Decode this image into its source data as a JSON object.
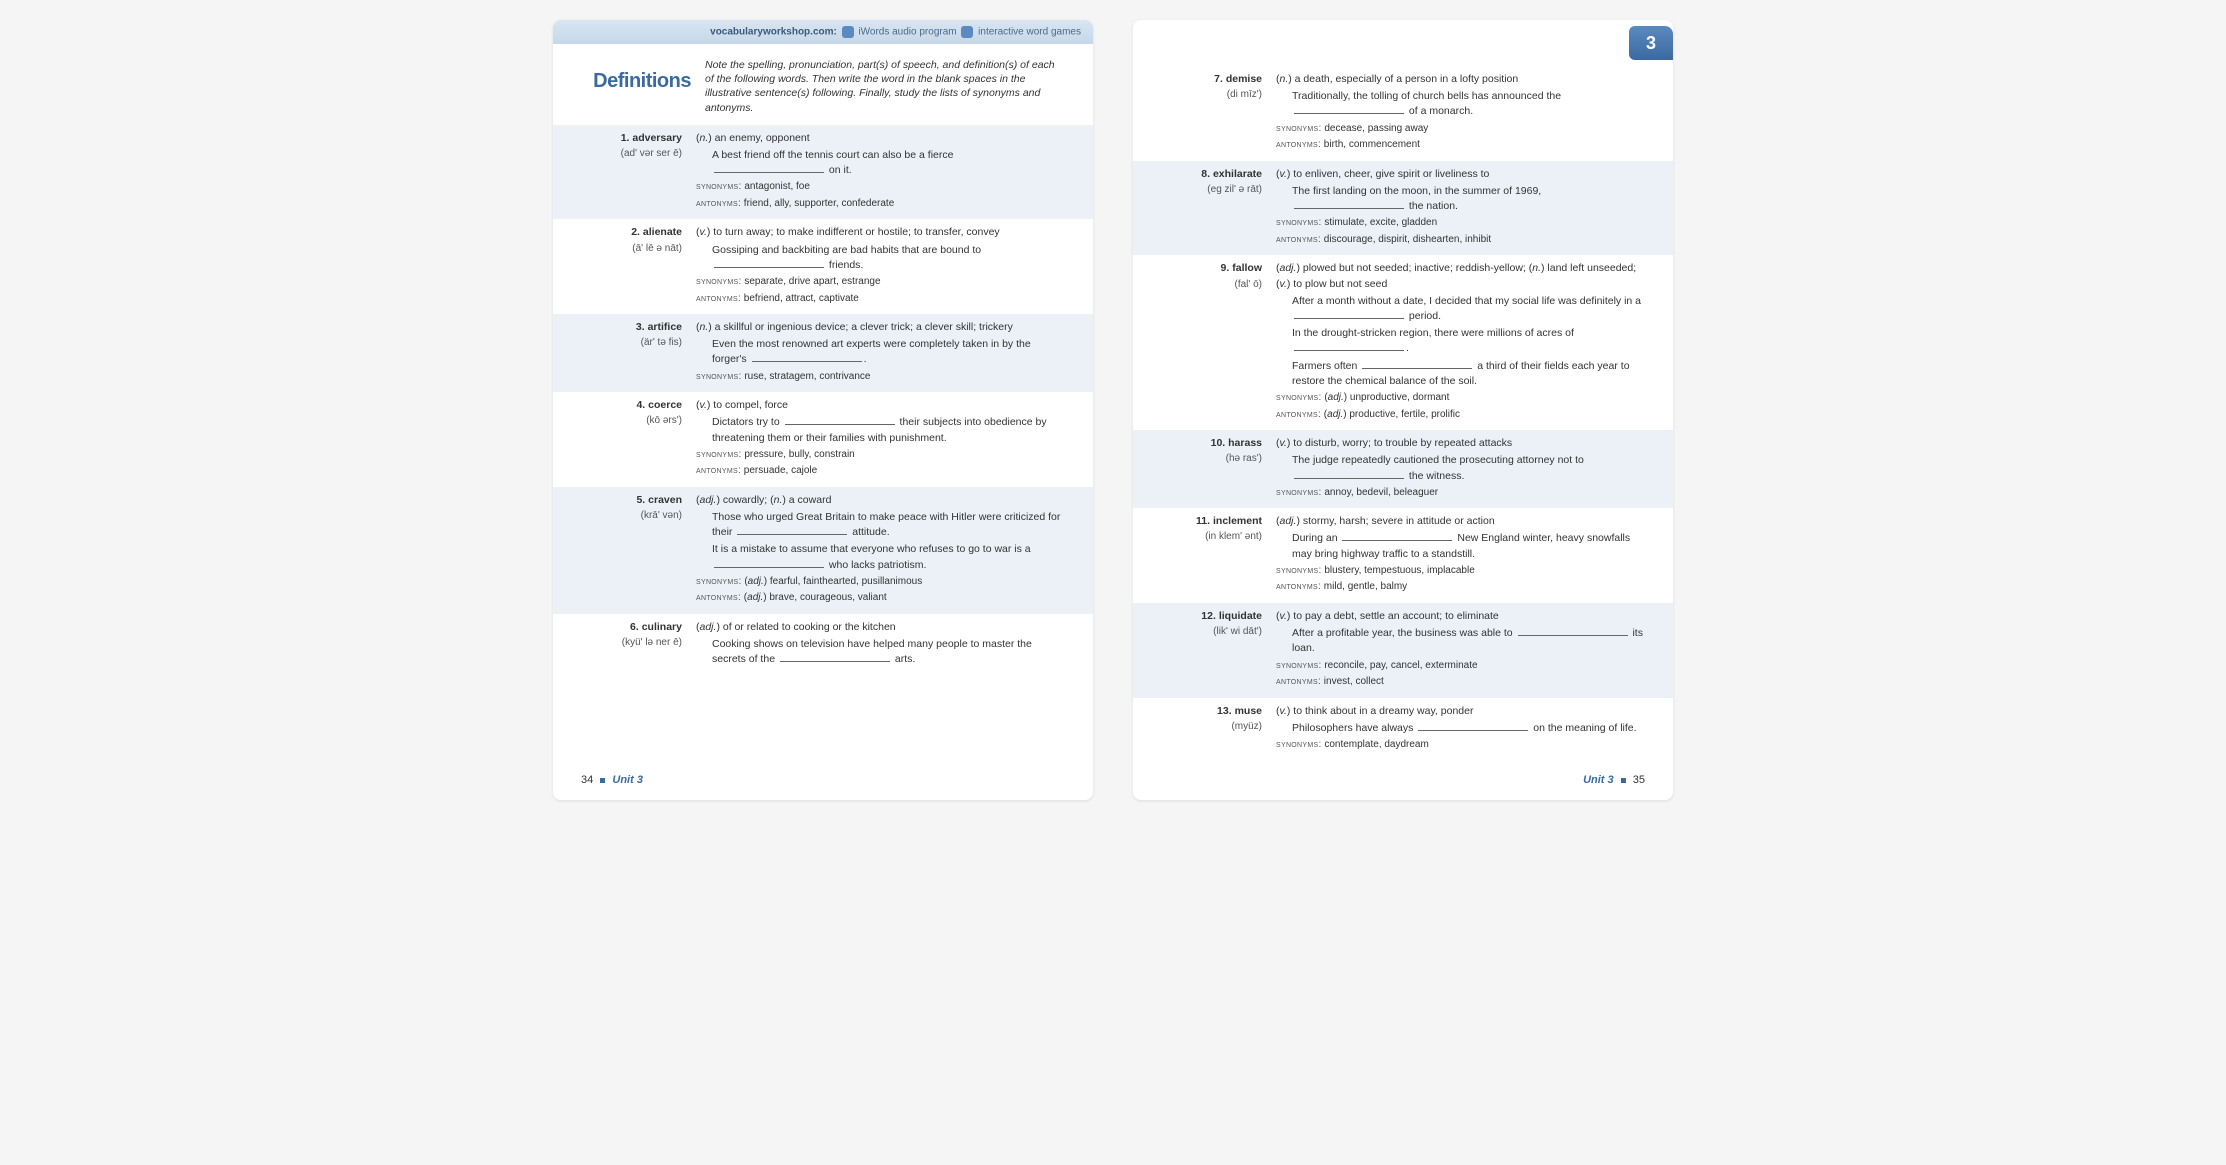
{
  "banner": {
    "site": "vocabularyworkshop.com:",
    "words_label": "iWords",
    "audio_label": "audio program",
    "games_label": "interactive word games"
  },
  "unit_tab": "3",
  "definitions_heading": "Definitions",
  "intro": "Note the spelling, pronunciation, part(s) of speech, and definition(s) of each of the following words. Then write the word in the blank spaces in the illustrative sentence(s) following. Finally, study the lists of synonyms and antonyms.",
  "footer_left": {
    "page": "34",
    "unit": "Unit 3"
  },
  "footer_right": {
    "unit": "Unit 3",
    "page": "35"
  },
  "entries_left": [
    {
      "num": "1.",
      "word": "adversary",
      "pron": "(ad' vər ser ē)",
      "def": "(<em>n.</em>) an enemy, opponent",
      "sentences": [
        "A best friend off the tennis court can also be a fierce <span class='blank'></span> on it."
      ],
      "syn": "antagonist, foe",
      "ant": "friend, ally, supporter, confederate"
    },
    {
      "num": "2.",
      "word": "alienate",
      "pron": "(ā' lē ə nāt)",
      "def": "(<em>v.</em>) to turn away; to make indifferent or hostile; to transfer, convey",
      "sentences": [
        "Gossiping and backbiting are bad habits that are bound to <span class='blank'></span> friends."
      ],
      "syn": "separate, drive apart, estrange",
      "ant": "befriend, attract, captivate"
    },
    {
      "num": "3.",
      "word": "artifice",
      "pron": "(är' tə fis)",
      "def": "(<em>n.</em>) a skillful or ingenious device; a clever trick; a clever skill; trickery",
      "sentences": [
        "Even the most renowned art experts were completely taken in by the forger's <span class='blank'></span>."
      ],
      "syn": "ruse, stratagem, contrivance",
      "ant": ""
    },
    {
      "num": "4.",
      "word": "coerce",
      "pron": "(kō ərs')",
      "def": "(<em>v.</em>) to compel, force",
      "sentences": [
        "Dictators try to <span class='blank'></span> their subjects into obedience by threatening them or their families with punishment."
      ],
      "syn": "pressure, bully, constrain",
      "ant": "persuade, cajole"
    },
    {
      "num": "5.",
      "word": "craven",
      "pron": "(krā' vən)",
      "def": "(<em>adj.</em>) cowardly; (<em>n.</em>) a coward",
      "sentences": [
        "Those who urged Great Britain to make peace with Hitler were criticized for their <span class='blank'></span> attitude.",
        "It is a mistake to assume that everyone who refuses to go to war is a <span class='blank'></span> who lacks patriotism."
      ],
      "syn": "(<em>adj.</em>) fearful, fainthearted, pusillanimous",
      "ant": "(<em>adj.</em>) brave, courageous, valiant"
    },
    {
      "num": "6.",
      "word": "culinary",
      "pron": "(kyü' lə ner ē)",
      "def": "(<em>adj.</em>) of or related to cooking or the kitchen",
      "sentences": [
        "Cooking shows on television have helped many people to master the secrets of the <span class='blank'></span> arts."
      ],
      "syn": "",
      "ant": ""
    }
  ],
  "entries_right": [
    {
      "num": "7.",
      "word": "demise",
      "pron": "(di mīz')",
      "def": "(<em>n.</em>) a death, especially of a person in a lofty position",
      "sentences": [
        "Traditionally, the tolling of church bells has announced the <span class='blank'></span> of a monarch."
      ],
      "syn": "decease, passing away",
      "ant": "birth, commencement"
    },
    {
      "num": "8.",
      "word": "exhilarate",
      "pron": "(eg zil' ə rāt)",
      "def": "(<em>v.</em>) to enliven, cheer, give spirit or liveliness to",
      "sentences": [
        "The first landing on the moon, in the summer of 1969, <span class='blank'></span> the nation."
      ],
      "syn": "stimulate, excite, gladden",
      "ant": "discourage, dispirit, dishearten, inhibit"
    },
    {
      "num": "9.",
      "word": "fallow",
      "pron": "(fal' ō)",
      "def": "(<em>adj.</em>) plowed but not seeded; inactive; reddish-yellow; (<em>n.</em>) land left unseeded; (<em>v.</em>) to plow but not seed",
      "sentences": [
        "After a month without a date, I decided that my social life was definitely in a <span class='blank'></span> period.",
        "In the drought-stricken region, there were millions of acres of <span class='blank'></span>.",
        "Farmers often <span class='blank'></span> a third of their fields each year to restore the chemical balance of the soil."
      ],
      "syn": "(<em>adj.</em>) unproductive, dormant",
      "ant": "(<em>adj.</em>) productive, fertile, prolific"
    },
    {
      "num": "10.",
      "word": "harass",
      "pron": "(hə ras')",
      "def": "(<em>v.</em>) to disturb, worry; to trouble by repeated attacks",
      "sentences": [
        "The judge repeatedly cautioned the prosecuting attorney not to <span class='blank'></span> the witness."
      ],
      "syn": "annoy, bedevil, beleaguer",
      "ant": ""
    },
    {
      "num": "11.",
      "word": "inclement",
      "pron": "(in klem' ənt)",
      "def": "(<em>adj.</em>) stormy, harsh; severe in attitude or action",
      "sentences": [
        "During an <span class='blank'></span> New England winter, heavy snowfalls may bring highway traffic to a standstill."
      ],
      "syn": "blustery, tempestuous, implacable",
      "ant": "mild, gentle, balmy"
    },
    {
      "num": "12.",
      "word": "liquidate",
      "pron": "(lik' wi dāt')",
      "def": "(<em>v.</em>) to pay a debt, settle an account; to eliminate",
      "sentences": [
        "After a profitable year, the business was able to <span class='blank'></span> its loan."
      ],
      "syn": "reconcile, pay, cancel, exterminate",
      "ant": "invest, collect"
    },
    {
      "num": "13.",
      "word": "muse",
      "pron": "(myüz)",
      "def": "(<em>v.</em>) to think about in a dreamy way, ponder",
      "sentences": [
        "Philosophers have always <span class='blank'></span> on the meaning of life."
      ],
      "syn": "contemplate, daydream",
      "ant": ""
    }
  ]
}
